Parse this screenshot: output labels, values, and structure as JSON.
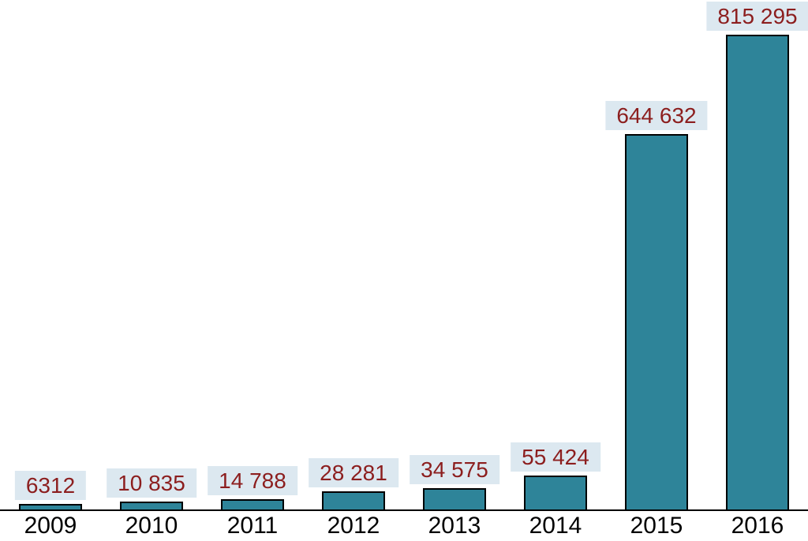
{
  "chart_data": {
    "type": "bar",
    "title": "",
    "xlabel": "",
    "ylabel": "",
    "categories": [
      "2009",
      "2010",
      "2011",
      "2012",
      "2013",
      "2014",
      "2015",
      "2016"
    ],
    "values": [
      6312,
      10835,
      14788,
      28281,
      34575,
      55424,
      644632,
      815295
    ],
    "value_labels": [
      "6312",
      "10 835",
      "14 788",
      "28 281",
      "34 575",
      "55 424",
      "644 632",
      "815 295"
    ],
    "ylim": [
      0,
      815295
    ],
    "grid": false,
    "legend": null,
    "colors": {
      "background": "#FFFFFF",
      "bar_fill": "#2E8499",
      "bar_border": "#000000",
      "label_text": "#8C1E1E",
      "label_background": "#DCE8F0",
      "axis_line": "#000000",
      "tick_text": "#000000"
    }
  }
}
